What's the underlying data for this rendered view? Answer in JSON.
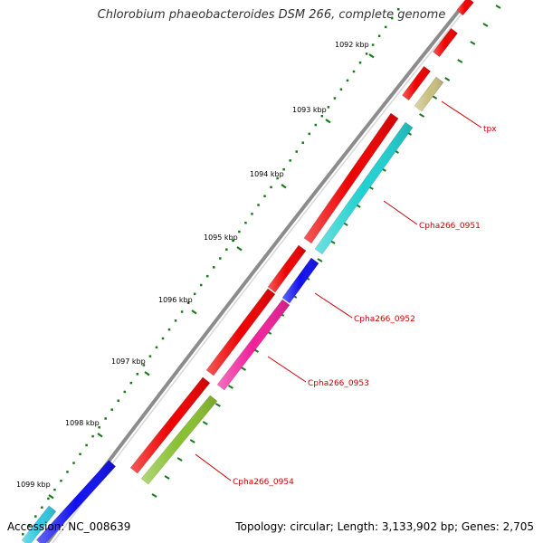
{
  "title": "Chlorobium phaeobacteroides DSM 266, complete genome",
  "footer": {
    "accession": "Accession: NC_008639",
    "summary": "Topology: circular; Length: 3,133,902 bp; Genes: 2,705"
  },
  "colors": {
    "backbone": "#8c8c8c",
    "tick": "#1a7a1a",
    "label": "#cc0000"
  },
  "ticks": [
    "1092 kbp",
    "1093 kbp",
    "1094 kbp",
    "1095 kbp",
    "1096 kbp",
    "1097 kbp",
    "1098 kbp",
    "1099 kbp"
  ],
  "gene_labels": [
    "tpx",
    "Cpha266_0951",
    "Cpha266_0952",
    "Cpha266_0953",
    "Cpha266_0954"
  ],
  "features": [
    {
      "ring": "outer",
      "color": "#ee0000",
      "name": "feature-red-top"
    },
    {
      "ring": "outer",
      "color": "#ee0000",
      "name": "feature-red-2"
    },
    {
      "ring": "outer",
      "color": "#ee0000",
      "name": "feature-red-3"
    },
    {
      "ring": "cds",
      "color": "#c8c080",
      "name": "feature-tpx"
    },
    {
      "ring": "outer",
      "color": "#ee0000",
      "name": "feature-red-long-1"
    },
    {
      "ring": "cds",
      "color": "#20d0d0",
      "name": "feature-cpha266-0951"
    },
    {
      "ring": "outer",
      "color": "#ee0000",
      "name": "feature-red-short"
    },
    {
      "ring": "cds",
      "color": "#1010ee",
      "name": "feature-cpha266-0952"
    },
    {
      "ring": "outer",
      "color": "#ee0000",
      "name": "feature-red-long-2"
    },
    {
      "ring": "cds",
      "color": "#f0209a",
      "name": "feature-cpha266-0953"
    },
    {
      "ring": "outer",
      "color": "#ee0000",
      "name": "feature-red-long-3"
    },
    {
      "ring": "cds",
      "color": "#88c030",
      "name": "feature-cpha266-0954"
    },
    {
      "ring": "inner",
      "color": "#1010ee",
      "name": "feature-blue-inner"
    },
    {
      "ring": "inner",
      "color": "#30c8e0",
      "name": "feature-cyan-inner"
    }
  ]
}
